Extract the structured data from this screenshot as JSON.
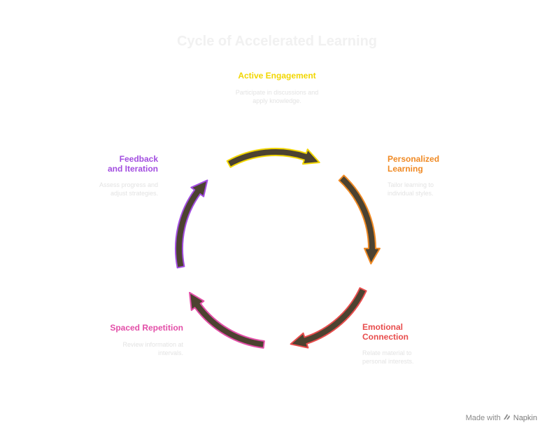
{
  "title": "Cycle of Accelerated Learning",
  "stages": [
    {
      "title": "Active Engagement",
      "desc": "Participate in discussions and apply knowledge.",
      "color": "#f2d600"
    },
    {
      "title": "Personalized Learning",
      "desc": "Tailor learning to individual styles.",
      "color": "#f08a24"
    },
    {
      "title": "Emotional Connection",
      "desc": "Relate material to personal interests.",
      "color": "#e84d4d"
    },
    {
      "title": "Spaced Repetition",
      "desc": "Review information at intervals.",
      "color": "#e34fa8"
    },
    {
      "title": "Feedback and Iteration",
      "desc": "Assess progress and adjust strategies.",
      "color": "#a24de0"
    }
  ],
  "arrow_fill": "#4c4230",
  "footer": {
    "made_with": "Made with",
    "brand": "Napkin",
    "icon": "napkin-logo-icon"
  }
}
